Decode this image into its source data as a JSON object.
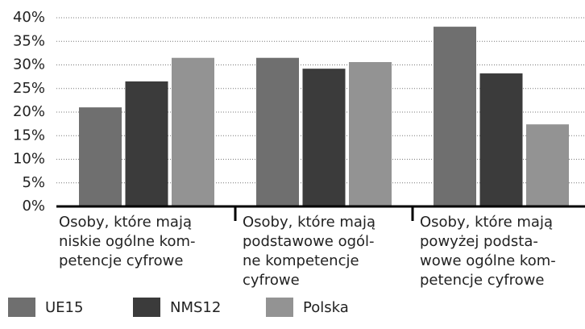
{
  "chart_data": {
    "type": "bar",
    "categories": [
      [
        "Osoby, które mają",
        "niskie ogólne kom-",
        "petencje cyfrowe"
      ],
      [
        "Osoby, które mają",
        "podstawowe ogól-",
        "ne kompetencje",
        "cyfrowe"
      ],
      [
        "Osoby, które mają",
        "powyżej podsta-",
        "wowe ogólne kom-",
        "petencje cyfrowe"
      ]
    ],
    "series": [
      {
        "name": "UE15",
        "color": "#6f6f6f",
        "values": [
          21.0,
          31.5,
          38.1
        ]
      },
      {
        "name": "NMS12",
        "color": "#3b3b3b",
        "values": [
          26.5,
          29.2,
          28.2
        ]
      },
      {
        "name": "Polska",
        "color": "#939393",
        "values": [
          31.5,
          30.6,
          17.4
        ]
      }
    ],
    "ylim": [
      0,
      40
    ],
    "yticks": [
      {
        "value": 0,
        "label": "0%"
      },
      {
        "value": 5,
        "label": "5%"
      },
      {
        "value": 10,
        "label": "10%"
      },
      {
        "value": 15,
        "label": "15%"
      },
      {
        "value": 20,
        "label": "20%"
      },
      {
        "value": 25,
        "label": "25%"
      },
      {
        "value": 30,
        "label": "30%"
      },
      {
        "value": 35,
        "label": "35%"
      },
      {
        "value": 40,
        "label": "40%"
      }
    ],
    "grid": true,
    "legend": "bottom"
  }
}
